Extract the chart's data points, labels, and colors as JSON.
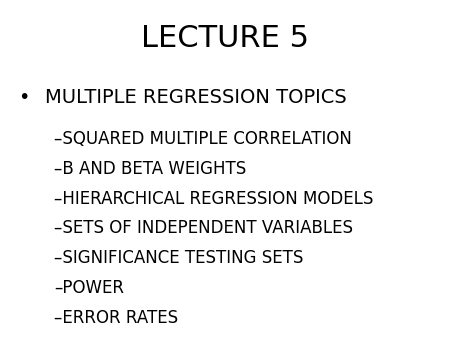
{
  "title": "LECTURE 5",
  "background_color": "#ffffff",
  "title_fontsize": 22,
  "title_color": "#000000",
  "bullet_text": "MULTIPLE REGRESSION TOPICS",
  "bullet_marker": "•",
  "bullet_fontsize": 14,
  "sub_items": [
    "–SQUARED MULTIPLE CORRELATION",
    "–B AND BETA WEIGHTS",
    "–HIERARCHICAL REGRESSION MODELS",
    "–SETS OF INDEPENDENT VARIABLES",
    "–SIGNIFICANCE TESTING SETS",
    "–POWER",
    "–ERROR RATES"
  ],
  "sub_fontsize": 12,
  "text_color": "#000000",
  "font_family": "Arial"
}
